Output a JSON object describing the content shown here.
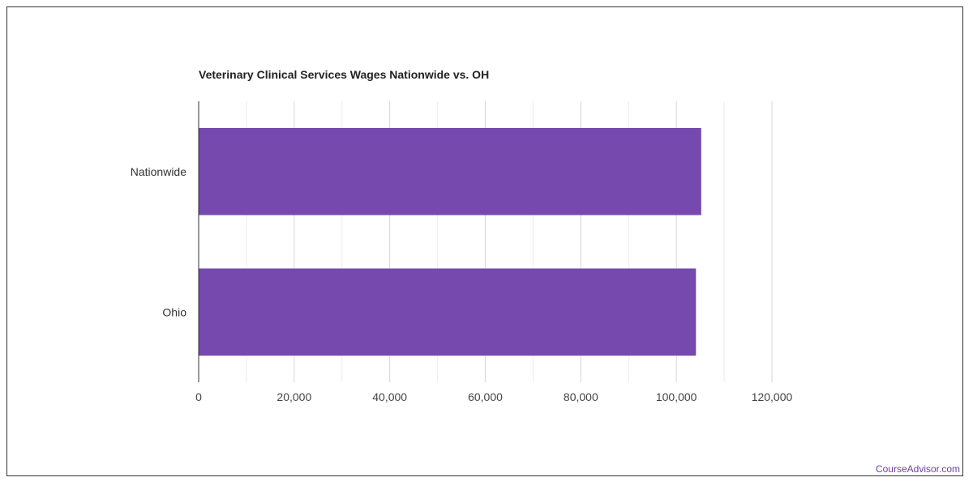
{
  "chart_data": {
    "type": "bar",
    "orientation": "horizontal",
    "title": "Veterinary Clinical Services Wages Nationwide vs. OH",
    "categories": [
      "Nationwide",
      "Ohio"
    ],
    "values": [
      105200,
      104100
    ],
    "xlim": [
      0,
      120000
    ],
    "x_ticks": [
      0,
      20000,
      40000,
      60000,
      80000,
      100000,
      120000
    ],
    "x_tick_labels": [
      "0",
      "20,000",
      "40,000",
      "60,000",
      "80,000",
      "100,000",
      "120,000"
    ],
    "xlabel": "",
    "ylabel": "",
    "grid": true,
    "bar_color": "#7549ad",
    "grid_color": "#dddddd",
    "axis_color": "#333333"
  },
  "footer": {
    "credit": "CourseAdvisor.com"
  }
}
